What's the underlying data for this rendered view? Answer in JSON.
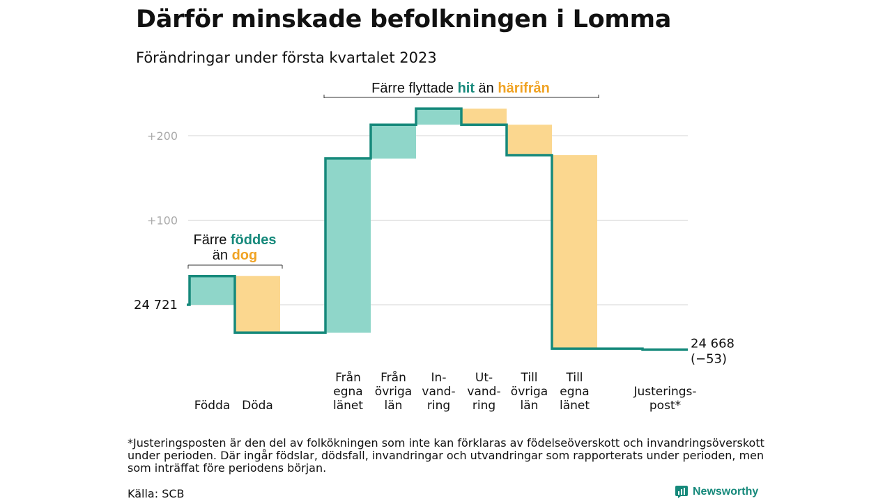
{
  "title": "Därför minskade befolkningen i Lomma",
  "subtitle": "Förändringar under första kvartalet 2023",
  "colors": {
    "inflow": "#8fd6c9",
    "outflow": "#fbd78f",
    "line": "#16897b",
    "hit_text": "#16897b",
    "harifran_text": "#f0a324",
    "grid": "#dddddd",
    "axis_text": "#aaaaaa"
  },
  "annotations": {
    "births": {
      "prefix": "Färre ",
      "hit": "föddes",
      "line2_prefix": "än ",
      "away": "dog"
    },
    "migration": {
      "prefix": "Färre flyttade ",
      "hit": "hit",
      "middle": " än ",
      "away": "härifrån"
    }
  },
  "start_label": "24 721",
  "end_label_line1": "24 668",
  "end_label_line2": "(−53)",
  "footnote": "*Justeringsposten är den del av folkökningen som inte kan förklaras av födelseöverskott och invandringsöverskott under perioden. Där ingår födslar, dödsfall, invandringar och utvandringar som rapporterats under perioden, men som inträffat före periodens början.",
  "source": "Källa: SCB",
  "brand": "Newsworthy",
  "chart_data": {
    "type": "waterfall",
    "baseline": 24721,
    "end_value": 24668,
    "net_change": -53,
    "yticks": [
      {
        "value": 100,
        "label": "+100"
      },
      {
        "value": 200,
        "label": "+200"
      }
    ],
    "ylim": [
      -55,
      205
    ],
    "steps": [
      {
        "label_lines": [
          "Födda"
        ],
        "change": 34,
        "kind": "inflow"
      },
      {
        "label_lines": [
          "Döda"
        ],
        "change": -67,
        "kind": "outflow"
      },
      {
        "label_lines": [
          "Från",
          "egna",
          "länet"
        ],
        "change": 206,
        "kind": "inflow"
      },
      {
        "label_lines": [
          "Från",
          "övriga",
          "län"
        ],
        "change": 40,
        "kind": "inflow"
      },
      {
        "label_lines": [
          "In-",
          "vand-",
          "ring"
        ],
        "change": 19,
        "kind": "inflow"
      },
      {
        "label_lines": [
          "Ut-",
          "vand-",
          "ring"
        ],
        "change": -19,
        "kind": "outflow"
      },
      {
        "label_lines": [
          "Till",
          "övriga",
          "län"
        ],
        "change": -36,
        "kind": "outflow"
      },
      {
        "label_lines": [
          "Till",
          "egna",
          "länet"
        ],
        "change": -229,
        "kind": "outflow"
      },
      {
        "label_lines": [
          "Justerings-",
          "post*"
        ],
        "change": -1,
        "kind": "adjustment"
      }
    ]
  }
}
